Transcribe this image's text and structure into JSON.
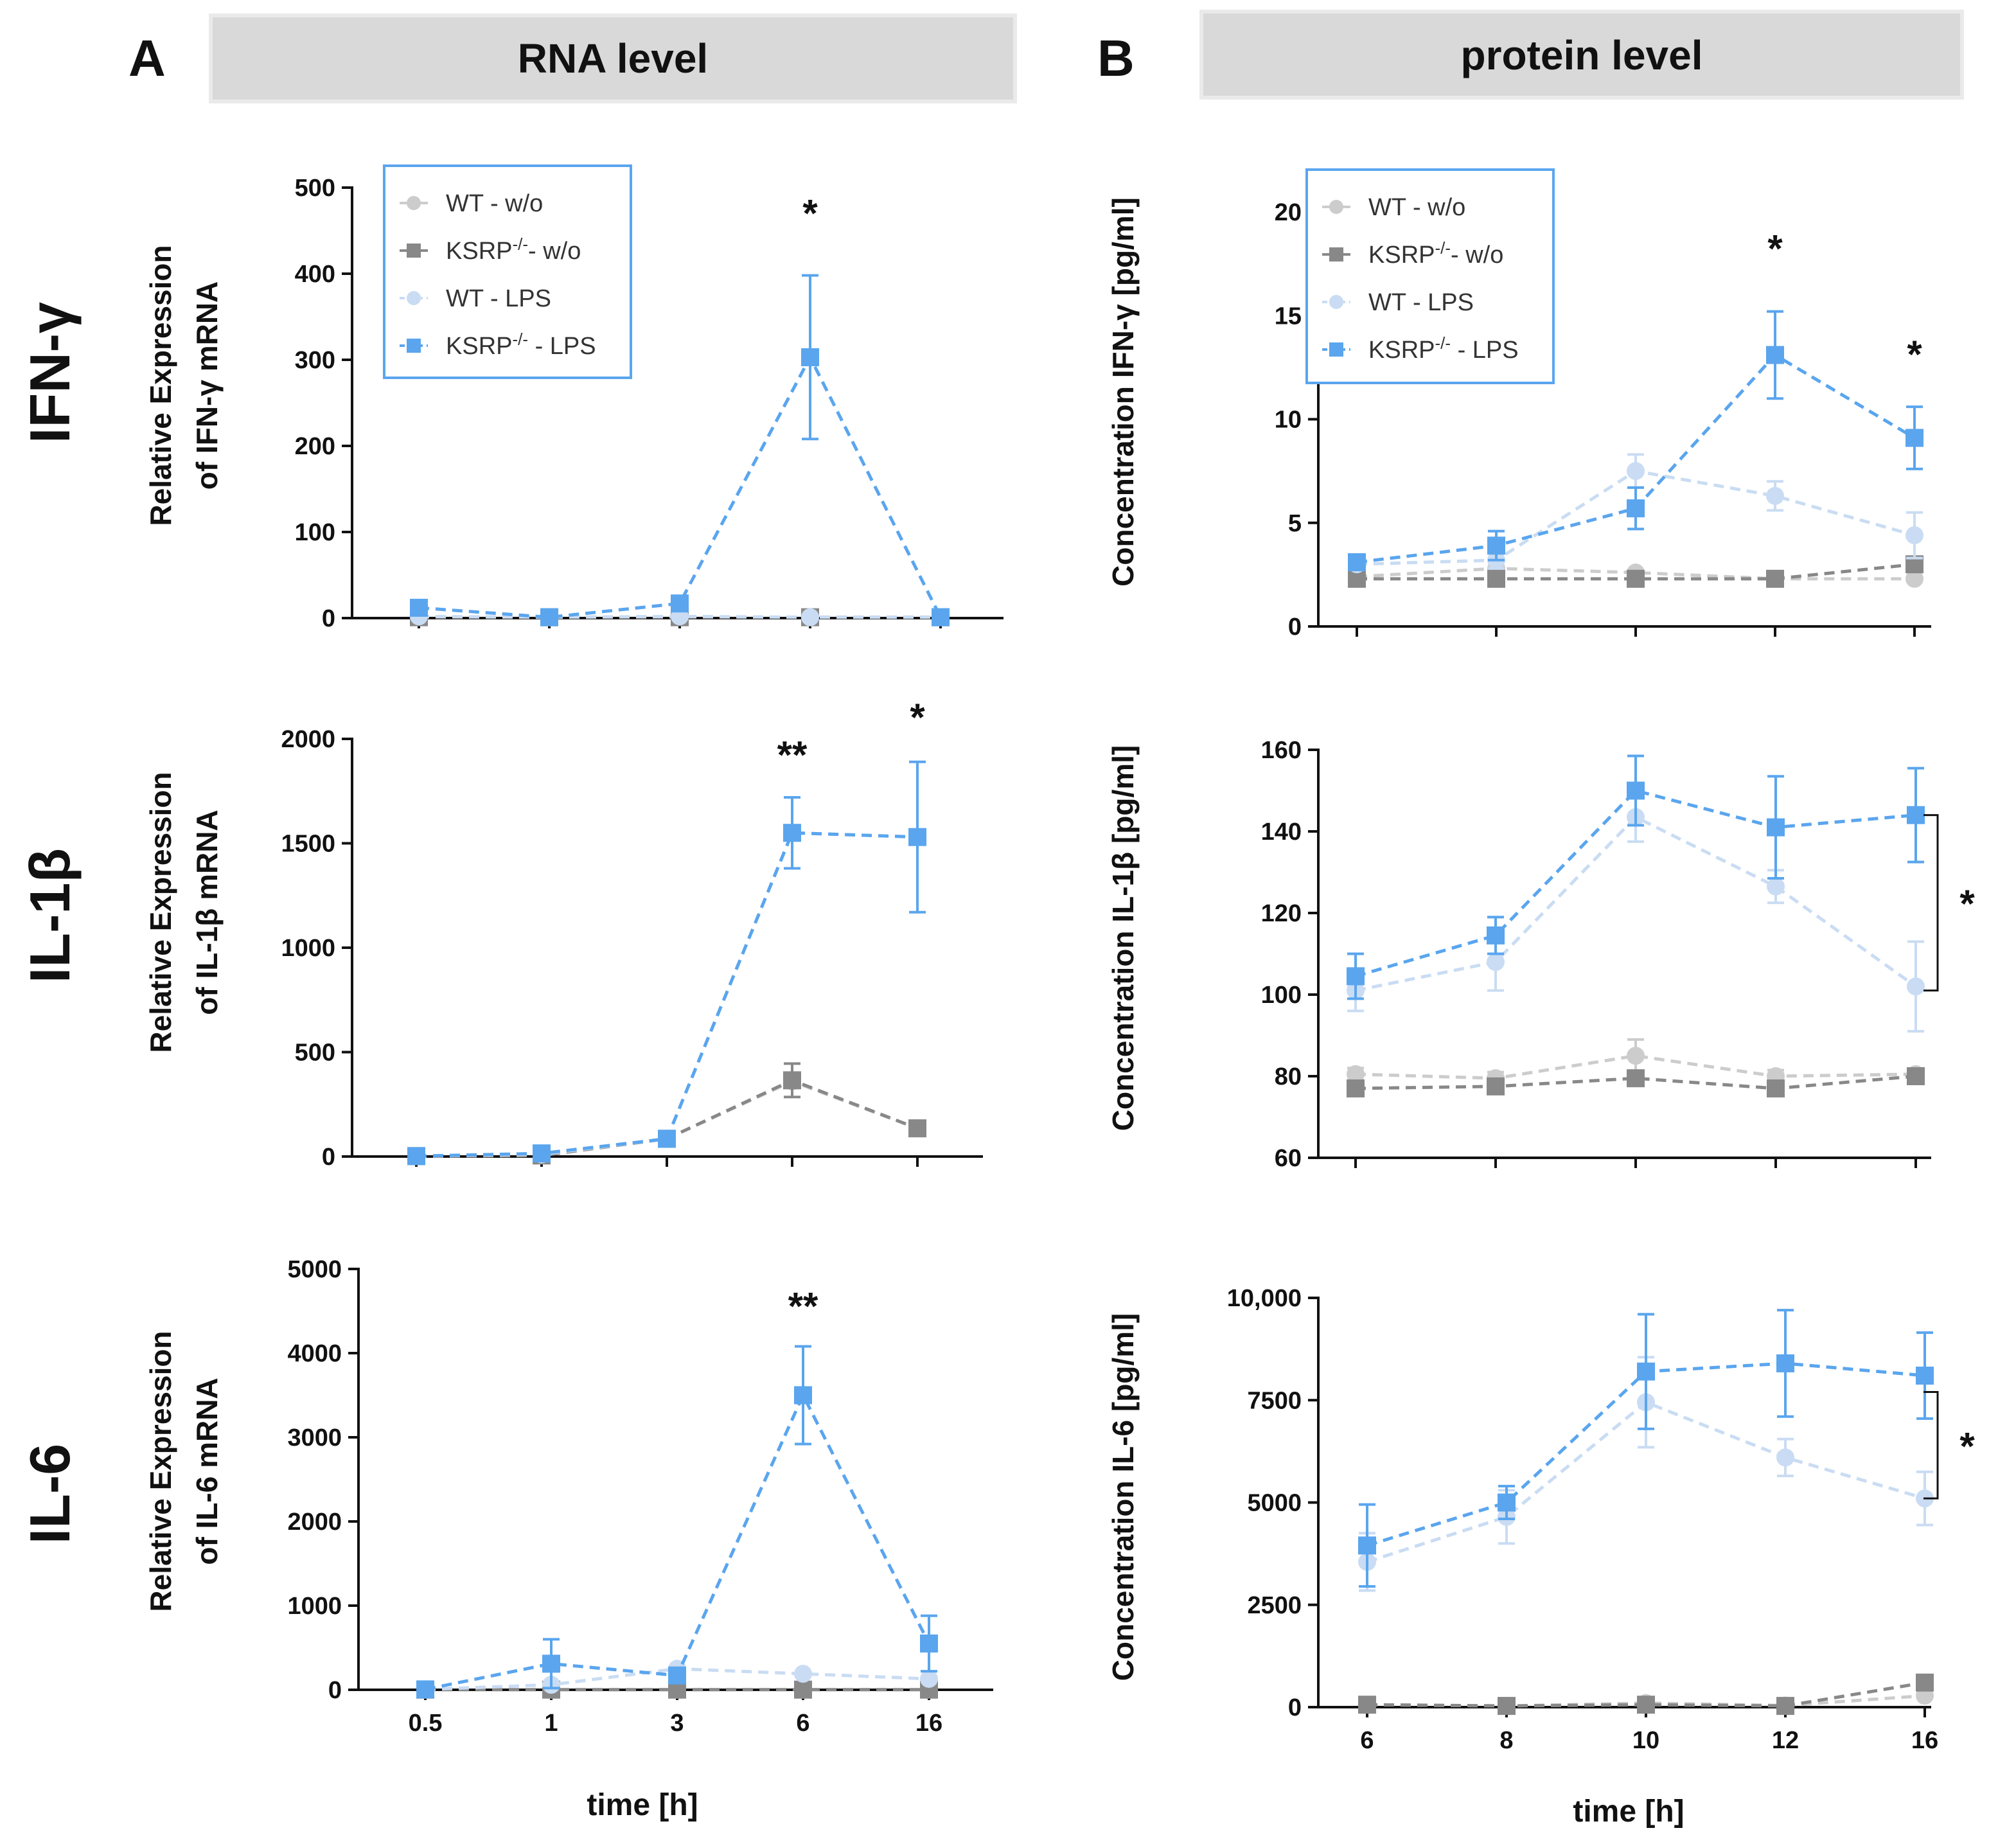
{
  "header": {
    "panel_a_letter": "A",
    "panel_a_title": "RNA level",
    "panel_b_letter": "B",
    "panel_b_title": "protein level"
  },
  "rows": [
    "IFN-γ",
    "IL-1β",
    "IL-6"
  ],
  "legend": [
    {
      "label": "WT - w/o",
      "base": "WT - w/o",
      "sup": "",
      "tail": "",
      "series": "wt_wo"
    },
    {
      "label": "KSRP-/- - w/o",
      "base": "KSRP",
      "sup": "-/-",
      "tail": "- w/o",
      "series": "ksrp_wo"
    },
    {
      "label": "WT - LPS",
      "base": "WT - LPS",
      "sup": "",
      "tail": "",
      "series": "wt_lps"
    },
    {
      "label": "KSRP-/- - LPS",
      "base": "KSRP",
      "sup": "-/-",
      "tail": " - LPS",
      "series": "ksrp_lps"
    }
  ],
  "series_style": {
    "wt_wo": {
      "color": "#cccccc",
      "marker": "circle"
    },
    "ksrp_wo": {
      "color": "#888888",
      "marker": "square"
    },
    "wt_lps": {
      "color": "#c9dcf3",
      "marker": "circle"
    },
    "ksrp_lps": {
      "color": "#5aa5ee",
      "marker": "square"
    }
  },
  "chart_data": [
    {
      "id": "A1",
      "type": "line",
      "row": "IFN-γ",
      "panel": "A",
      "ylabel": [
        "Relative Expression",
        "of IFN-γ mRNA"
      ],
      "xlabel": "",
      "categories": [
        "0.5",
        "1",
        "3",
        "6",
        "16"
      ],
      "ylim": [
        0,
        500
      ],
      "yticks": [
        0,
        100,
        200,
        300,
        400,
        500
      ],
      "ytick_labels": [
        "0",
        "100",
        "200",
        "300",
        "400",
        "500"
      ],
      "show_x_tick_labels": false,
      "legend": true,
      "series": [
        {
          "key": "wt_wo",
          "name": "WT - w/o",
          "values": [
            1,
            1,
            1,
            1,
            1
          ],
          "errors": [
            0,
            0,
            0,
            0,
            0
          ]
        },
        {
          "key": "ksrp_wo",
          "name": "KSRP-/- - w/o",
          "values": [
            1,
            1,
            1,
            1,
            1
          ],
          "errors": [
            0,
            0,
            0,
            0,
            0
          ]
        },
        {
          "key": "wt_lps",
          "name": "WT - LPS",
          "values": [
            2,
            1,
            2,
            1,
            1
          ],
          "errors": [
            0,
            0,
            0,
            0,
            0
          ]
        },
        {
          "key": "ksrp_lps",
          "name": "KSRP-/- - LPS",
          "values": [
            12,
            1,
            17,
            303,
            1
          ],
          "errors": [
            0,
            0,
            0,
            95,
            0
          ]
        }
      ],
      "annotations": [
        {
          "text": "*",
          "x_index": 3,
          "y": 455
        }
      ],
      "brackets": []
    },
    {
      "id": "B1",
      "type": "line",
      "row": "IFN-γ",
      "panel": "B",
      "ylabel": [
        "Concentration IFN-γ [pg/ml]"
      ],
      "xlabel": "",
      "categories": [
        "6",
        "8",
        "10",
        "12",
        "16"
      ],
      "ylim": [
        0,
        20
      ],
      "yticks": [
        0,
        5,
        10,
        15,
        20
      ],
      "ytick_labels": [
        "0",
        "5",
        "10",
        "15",
        "20"
      ],
      "show_x_tick_labels": false,
      "legend": true,
      "series": [
        {
          "key": "wt_wo",
          "name": "WT - w/o",
          "values": [
            2.4,
            2.8,
            2.6,
            2.3,
            2.3
          ],
          "errors": [
            0,
            0,
            0,
            0,
            0
          ]
        },
        {
          "key": "ksrp_wo",
          "name": "KSRP-/- - w/o",
          "values": [
            2.3,
            2.3,
            2.3,
            2.3,
            3.0
          ],
          "errors": [
            0,
            0,
            0,
            0,
            0
          ]
        },
        {
          "key": "wt_lps",
          "name": "WT - LPS",
          "values": [
            3.0,
            3.2,
            7.5,
            6.3,
            4.4
          ],
          "errors": [
            0,
            0.4,
            0.8,
            0.7,
            1.1
          ]
        },
        {
          "key": "ksrp_lps",
          "name": "KSRP-/- - LPS",
          "values": [
            3.1,
            3.9,
            5.7,
            13.1,
            9.1
          ],
          "errors": [
            0,
            0.7,
            1.0,
            2.1,
            1.5
          ]
        }
      ],
      "annotations": [
        {
          "text": "*",
          "x_index": 3,
          "y": 17.6
        },
        {
          "text": "*",
          "x_index": 4,
          "y": 12.5
        }
      ],
      "brackets": []
    },
    {
      "id": "A2",
      "type": "line",
      "row": "IL-1β",
      "panel": "A",
      "ylabel": [
        "Relative Expression",
        "of IL-1β mRNA"
      ],
      "xlabel": "",
      "categories": [
        "0.5",
        "1",
        "3",
        "6",
        "16"
      ],
      "ylim": [
        0,
        2000
      ],
      "yticks": [
        0,
        500,
        1000,
        1500,
        2000
      ],
      "ytick_labels": [
        "0",
        "500",
        "1000",
        "1500",
        "2000"
      ],
      "show_x_tick_labels": false,
      "legend": false,
      "series": [
        {
          "key": "wt_wo",
          "name": "WT - w/o",
          "values": [
            2,
            5,
            85,
            360,
            135
          ],
          "errors": [
            0,
            0,
            0,
            0,
            0
          ]
        },
        {
          "key": "ksrp_wo",
          "name": "KSRP-/- - w/o",
          "values": [
            2,
            5,
            85,
            365,
            135
          ],
          "errors": [
            0,
            0,
            0,
            80,
            0
          ]
        },
        {
          "key": "wt_lps",
          "name": "WT - LPS",
          "values": [
            2,
            10,
            85,
            1550,
            1530
          ],
          "errors": [
            0,
            0,
            0,
            0,
            0
          ]
        },
        {
          "key": "ksrp_lps",
          "name": "KSRP-/- - LPS",
          "values": [
            2,
            15,
            85,
            1550,
            1530
          ],
          "errors": [
            0,
            0,
            0,
            170,
            360
          ]
        }
      ],
      "annotations": [
        {
          "text": "**",
          "x_index": 3,
          "y": 1860
        },
        {
          "text": "*",
          "x_index": 4,
          "y": 2040
        }
      ],
      "brackets": []
    },
    {
      "id": "B2",
      "type": "line",
      "row": "IL-1β",
      "panel": "B",
      "ylabel": [
        "Concentration IL-1β [pg/ml]"
      ],
      "xlabel": "",
      "categories": [
        "6",
        "8",
        "10",
        "12",
        "16"
      ],
      "ylim": [
        60,
        160
      ],
      "yticks": [
        60,
        80,
        100,
        120,
        140,
        160
      ],
      "ytick_labels": [
        "60",
        "80",
        "100",
        "120",
        "140",
        "160"
      ],
      "show_x_tick_labels": false,
      "legend": false,
      "series": [
        {
          "key": "wt_wo",
          "name": "WT - w/o",
          "values": [
            80.5,
            79.5,
            85,
            80,
            80.5
          ],
          "errors": [
            1.5,
            1.5,
            4,
            1.5,
            1
          ]
        },
        {
          "key": "ksrp_wo",
          "name": "KSRP-/- - w/o",
          "values": [
            77,
            77.5,
            79.5,
            77,
            80
          ],
          "errors": [
            0,
            0,
            0,
            0,
            0
          ]
        },
        {
          "key": "wt_lps",
          "name": "WT - LPS",
          "values": [
            101,
            108,
            143.5,
            126.5,
            102
          ],
          "errors": [
            5,
            7,
            6,
            4,
            11
          ]
        },
        {
          "key": "ksrp_lps",
          "name": "KSRP-/- - LPS",
          "values": [
            104.5,
            114.5,
            150,
            141,
            144
          ],
          "errors": [
            5.5,
            4.5,
            8.5,
            12.5,
            11.5
          ]
        }
      ],
      "annotations": [],
      "brackets": [
        {
          "text": "*",
          "from": 144,
          "to": 101
        }
      ]
    },
    {
      "id": "A3",
      "type": "line",
      "row": "IL-6",
      "panel": "A",
      "ylabel": [
        "Relative Expression",
        "of IL-6 mRNA"
      ],
      "xlabel": "time [h]",
      "categories": [
        "0.5",
        "1",
        "3",
        "6",
        "16"
      ],
      "ylim": [
        0,
        5000
      ],
      "yticks": [
        0,
        1000,
        2000,
        3000,
        4000,
        5000
      ],
      "ytick_labels": [
        "0",
        "1000",
        "2000",
        "3000",
        "4000",
        "5000"
      ],
      "show_x_tick_labels": true,
      "legend": false,
      "series": [
        {
          "key": "wt_wo",
          "name": "WT - w/o",
          "values": [
            2,
            2,
            2,
            2,
            2
          ],
          "errors": [
            0,
            0,
            0,
            0,
            0
          ]
        },
        {
          "key": "ksrp_wo",
          "name": "KSRP-/- - w/o",
          "values": [
            2,
            2,
            2,
            2,
            2
          ],
          "errors": [
            0,
            0,
            0,
            0,
            0
          ]
        },
        {
          "key": "wt_lps",
          "name": "WT - LPS",
          "values": [
            5,
            60,
            250,
            190,
            130
          ],
          "errors": [
            0,
            0,
            0,
            0,
            0
          ]
        },
        {
          "key": "ksrp_lps",
          "name": "KSRP-/- - LPS",
          "values": [
            5,
            310,
            170,
            3500,
            550
          ],
          "errors": [
            0,
            290,
            0,
            580,
            330
          ]
        }
      ],
      "annotations": [
        {
          "text": "**",
          "x_index": 3,
          "y": 4400
        }
      ],
      "brackets": []
    },
    {
      "id": "B3",
      "type": "line",
      "row": "IL-6",
      "panel": "B",
      "ylabel": [
        "Concentration IL-6 [pg/ml]"
      ],
      "xlabel": "time [h]",
      "categories": [
        "6",
        "8",
        "10",
        "12",
        "16"
      ],
      "ylim": [
        0,
        10000
      ],
      "yticks": [
        0,
        2500,
        5000,
        7500,
        10000
      ],
      "ytick_labels": [
        "0",
        "2500",
        "5000",
        "7500",
        "10,000"
      ],
      "show_x_tick_labels": true,
      "legend": false,
      "series": [
        {
          "key": "wt_wo",
          "name": "WT - w/o",
          "values": [
            60,
            30,
            100,
            40,
            280
          ],
          "errors": [
            0,
            0,
            0,
            0,
            0
          ]
        },
        {
          "key": "ksrp_wo",
          "name": "KSRP-/- - w/o",
          "values": [
            60,
            30,
            60,
            30,
            600
          ],
          "errors": [
            0,
            0,
            0,
            0,
            0
          ]
        },
        {
          "key": "wt_lps",
          "name": "WT - LPS",
          "values": [
            3550,
            4650,
            7450,
            6100,
            5100
          ],
          "errors": [
            700,
            650,
            1100,
            450,
            650
          ]
        },
        {
          "key": "ksrp_lps",
          "name": "KSRP-/- - LPS",
          "values": [
            3950,
            5000,
            8200,
            8400,
            8100
          ],
          "errors": [
            1000,
            400,
            1400,
            1300,
            1050
          ]
        }
      ],
      "annotations": [],
      "brackets": [
        {
          "text": "*",
          "from": 7700,
          "to": 5100
        }
      ]
    }
  ]
}
